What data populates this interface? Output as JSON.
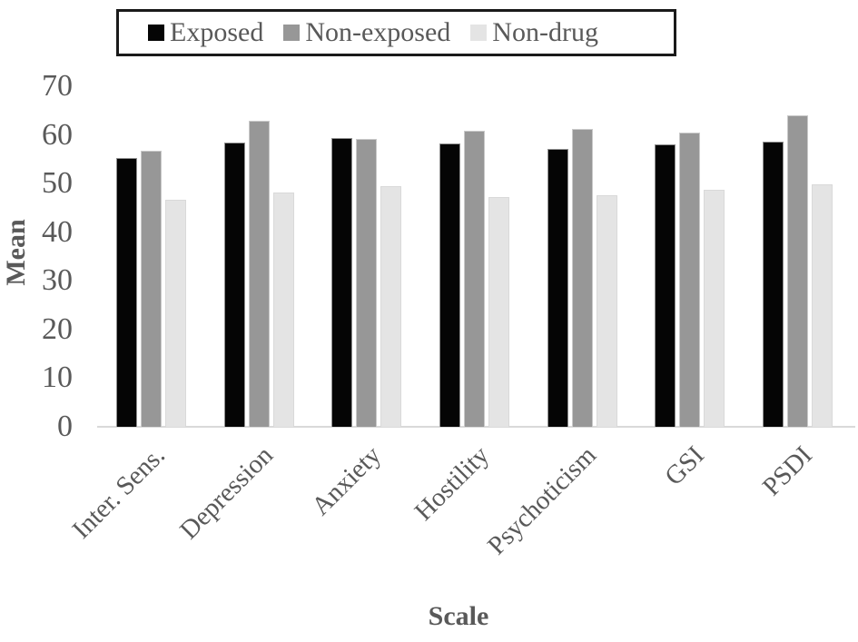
{
  "figure": {
    "background": "#ffffff",
    "text_color": "#595959",
    "axis_line_color": "#d9d9d9",
    "legend_border_color": "#1a1a1a"
  },
  "chart_data": {
    "type": "bar",
    "title": "",
    "xlabel": "Scale",
    "ylabel": "Mean",
    "ylim": [
      0,
      70
    ],
    "yticks": [
      0,
      10,
      20,
      30,
      40,
      50,
      60,
      70
    ],
    "grid": false,
    "legend_position": "top",
    "categories": [
      "Inter. Sens.",
      "Depression",
      "Anxiety",
      "Hostility",
      "Psychoticism",
      "GSI",
      "PSDI"
    ],
    "series": [
      {
        "name": "Exposed",
        "color": "#050505",
        "border_color": "#8f8f8f",
        "values": [
          55.3,
          58.5,
          59.3,
          58.3,
          57.2,
          58.0,
          58.6
        ]
      },
      {
        "name": "Non-exposed",
        "color": "#979797",
        "border_color": "#c9c9c9",
        "values": [
          56.7,
          63.0,
          59.2,
          60.9,
          61.2,
          60.5,
          64.0
        ]
      },
      {
        "name": "Non-drug",
        "color": "#e4e4e4",
        "border_color": "#d9d9d9",
        "values": [
          46.6,
          48.2,
          49.4,
          47.3,
          47.6,
          48.7,
          49.8
        ]
      }
    ]
  }
}
